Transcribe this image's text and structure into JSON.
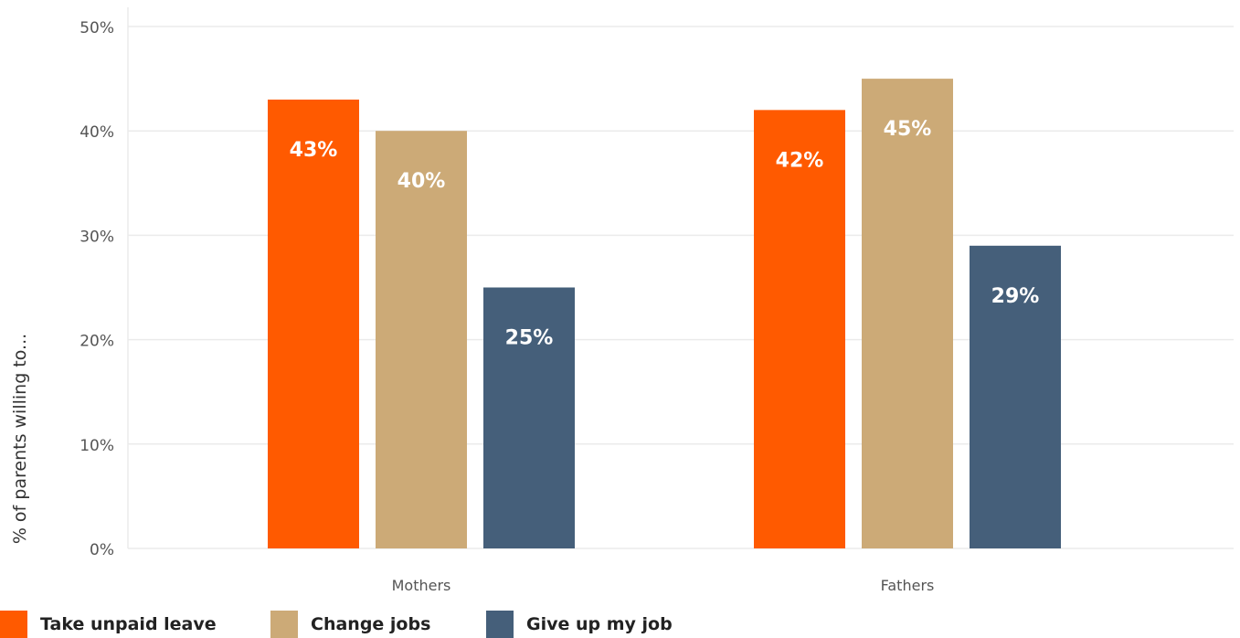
{
  "chart_data": {
    "type": "bar",
    "categories": [
      "Mothers",
      "Fathers"
    ],
    "series": [
      {
        "name": "Take unpaid leave",
        "values": [
          43,
          42
        ],
        "labels": [
          "43%",
          "42%"
        ],
        "color": "#FF5A00"
      },
      {
        "name": "Change jobs",
        "values": [
          40,
          45
        ],
        "labels": [
          "40%",
          "45%"
        ],
        "color": "#CCAA77"
      },
      {
        "name": "Give up my job",
        "values": [
          25,
          29
        ],
        "labels": [
          "25%",
          "29%"
        ],
        "color": "#455F7A"
      }
    ],
    "ylabel": "% of parents willing to...",
    "xlabel": "",
    "ylim": [
      0,
      50
    ],
    "yticks": [
      0,
      10,
      20,
      30,
      40,
      50
    ],
    "ytick_labels": [
      "0%",
      "10%",
      "20%",
      "30%",
      "40%",
      "50%"
    ],
    "grid": true,
    "legend_position": "bottom-left"
  }
}
